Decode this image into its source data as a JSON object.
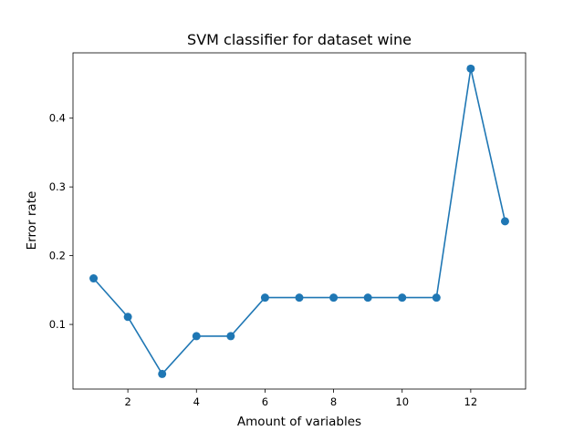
{
  "chart_data": {
    "type": "line",
    "title": "SVM classifier for dataset wine",
    "xlabel": "Amount of variables",
    "ylabel": "Error rate",
    "xlim": [
      0.4,
      13.6
    ],
    "ylim": [
      0.006,
      0.495
    ],
    "xticks": [
      2,
      4,
      6,
      8,
      10,
      12
    ],
    "yticks": [
      0.1,
      0.2,
      0.3,
      0.4
    ],
    "xtick_labels": [
      "2",
      "4",
      "6",
      "8",
      "10",
      "12"
    ],
    "ytick_labels": [
      "0.1",
      "0.2",
      "0.3",
      "0.4"
    ],
    "grid": false,
    "series": [
      {
        "x": [
          1,
          2,
          3,
          4,
          5,
          6,
          7,
          8,
          9,
          10,
          11,
          12,
          13
        ],
        "values": [
          0.167,
          0.111,
          0.028,
          0.083,
          0.083,
          0.139,
          0.139,
          0.139,
          0.139,
          0.139,
          0.139,
          0.472,
          0.25
        ],
        "color": "#1f77b4",
        "marker": "circle"
      }
    ]
  }
}
